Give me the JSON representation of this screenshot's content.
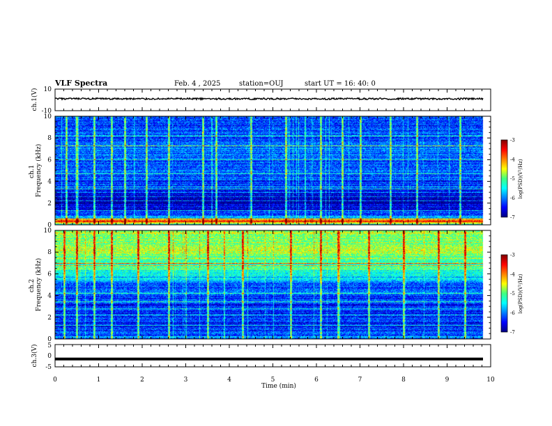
{
  "header": {
    "title": "VLF Spectra",
    "date": "Feb. 4 , 2025",
    "station": "station=OUJ",
    "start": "start UT =  16: 40: 0"
  },
  "colors": {
    "colormap": [
      "#000080",
      "#0000ff",
      "#0080ff",
      "#00ffff",
      "#40ff80",
      "#ffff00",
      "#ff8000",
      "#ff0000",
      "#800000"
    ],
    "trace": "#000000",
    "background": "#ffffff"
  },
  "chart_data": [
    {
      "type": "line",
      "panel": "ch1-waveform",
      "ylabel": "ch.1(V)",
      "ylim": [
        -10,
        10
      ],
      "ytick_labels": [
        "10",
        "-10"
      ],
      "x_range_min": [
        0,
        9.83
      ],
      "level_approx_V": 1.0,
      "noisy": true
    },
    {
      "type": "heatmap",
      "panel": "ch1-spectrogram",
      "ylabel": "ch.1\nFrequency  (kHz)",
      "ylim": [
        0,
        10
      ],
      "ytick_labels": [
        "0",
        "2",
        "4",
        "6",
        "8",
        "10"
      ],
      "x_range_min": [
        0,
        9.83
      ],
      "colorbar": {
        "label": "log(PSD)(V²/Hz)",
        "range": [
          -7,
          -3
        ],
        "tick_labels": [
          "-3",
          "-4",
          "-5",
          "-6",
          "-7"
        ]
      },
      "background_log_psd_by_freq_kHz": [
        [
          0,
          -5.5
        ],
        [
          0.3,
          -3.4
        ],
        [
          0.6,
          -5.8
        ],
        [
          1.5,
          -6.6
        ],
        [
          2.5,
          -6.8
        ],
        [
          4,
          -6.3
        ],
        [
          7,
          -6.1
        ],
        [
          10,
          -6.3
        ]
      ],
      "tonal_lines_kHz": [
        0.5,
        1.3,
        2.2,
        2.6,
        3.0,
        3.3,
        3.5,
        4.7,
        6.0,
        7.3,
        8.2
      ],
      "bursts_min": [
        0.25,
        0.5,
        0.9,
        1.3,
        1.6,
        2.1,
        2.6,
        3.4,
        3.7,
        4.5,
        5.3,
        6.1,
        6.6,
        7.0,
        7.7,
        8.3,
        9.3
      ]
    },
    {
      "type": "heatmap",
      "panel": "ch2-spectrogram",
      "ylabel": "ch.2\nFrequency  (kHz)",
      "ylim": [
        0,
        10
      ],
      "ytick_labels": [
        "0",
        "2",
        "4",
        "6",
        "8",
        "10"
      ],
      "x_range_min": [
        0,
        9.83
      ],
      "colorbar": {
        "label": "log(PSD)(V²/Hz)",
        "range": [
          -7,
          -3
        ],
        "tick_labels": [
          "-3",
          "-4",
          "-5",
          "-6",
          "-7"
        ]
      },
      "background_log_psd_by_freq_kHz": [
        [
          0,
          -5.9
        ],
        [
          1,
          -6.4
        ],
        [
          3,
          -6.4
        ],
        [
          5,
          -6.0
        ],
        [
          6.5,
          -5.2
        ],
        [
          8,
          -4.8
        ],
        [
          10,
          -4.8
        ]
      ],
      "tonal_lines_kHz": [
        1.2,
        2.2,
        2.8,
        3.4,
        4.2,
        6.8,
        7.0
      ],
      "bursts_min": [
        0.2,
        0.5,
        0.9,
        1.3,
        1.9,
        2.6,
        3.5,
        4.3,
        5.4,
        6.1,
        6.5,
        7.2,
        8.0,
        8.8,
        9.4
      ]
    },
    {
      "type": "line",
      "panel": "ch3-waveform",
      "ylabel": "ch.3(V)",
      "ylim": [
        -5,
        5
      ],
      "ytick_labels": [
        "5",
        "0",
        "-5"
      ],
      "x_range_min": [
        0,
        9.83
      ],
      "level_approx_V": -1.5,
      "noisy": false
    }
  ],
  "xaxis": {
    "label": "Time  (min)",
    "range": [
      0,
      10
    ],
    "tick_labels": [
      "0",
      "1",
      "2",
      "3",
      "4",
      "5",
      "6",
      "7",
      "8",
      "9",
      "10"
    ]
  }
}
